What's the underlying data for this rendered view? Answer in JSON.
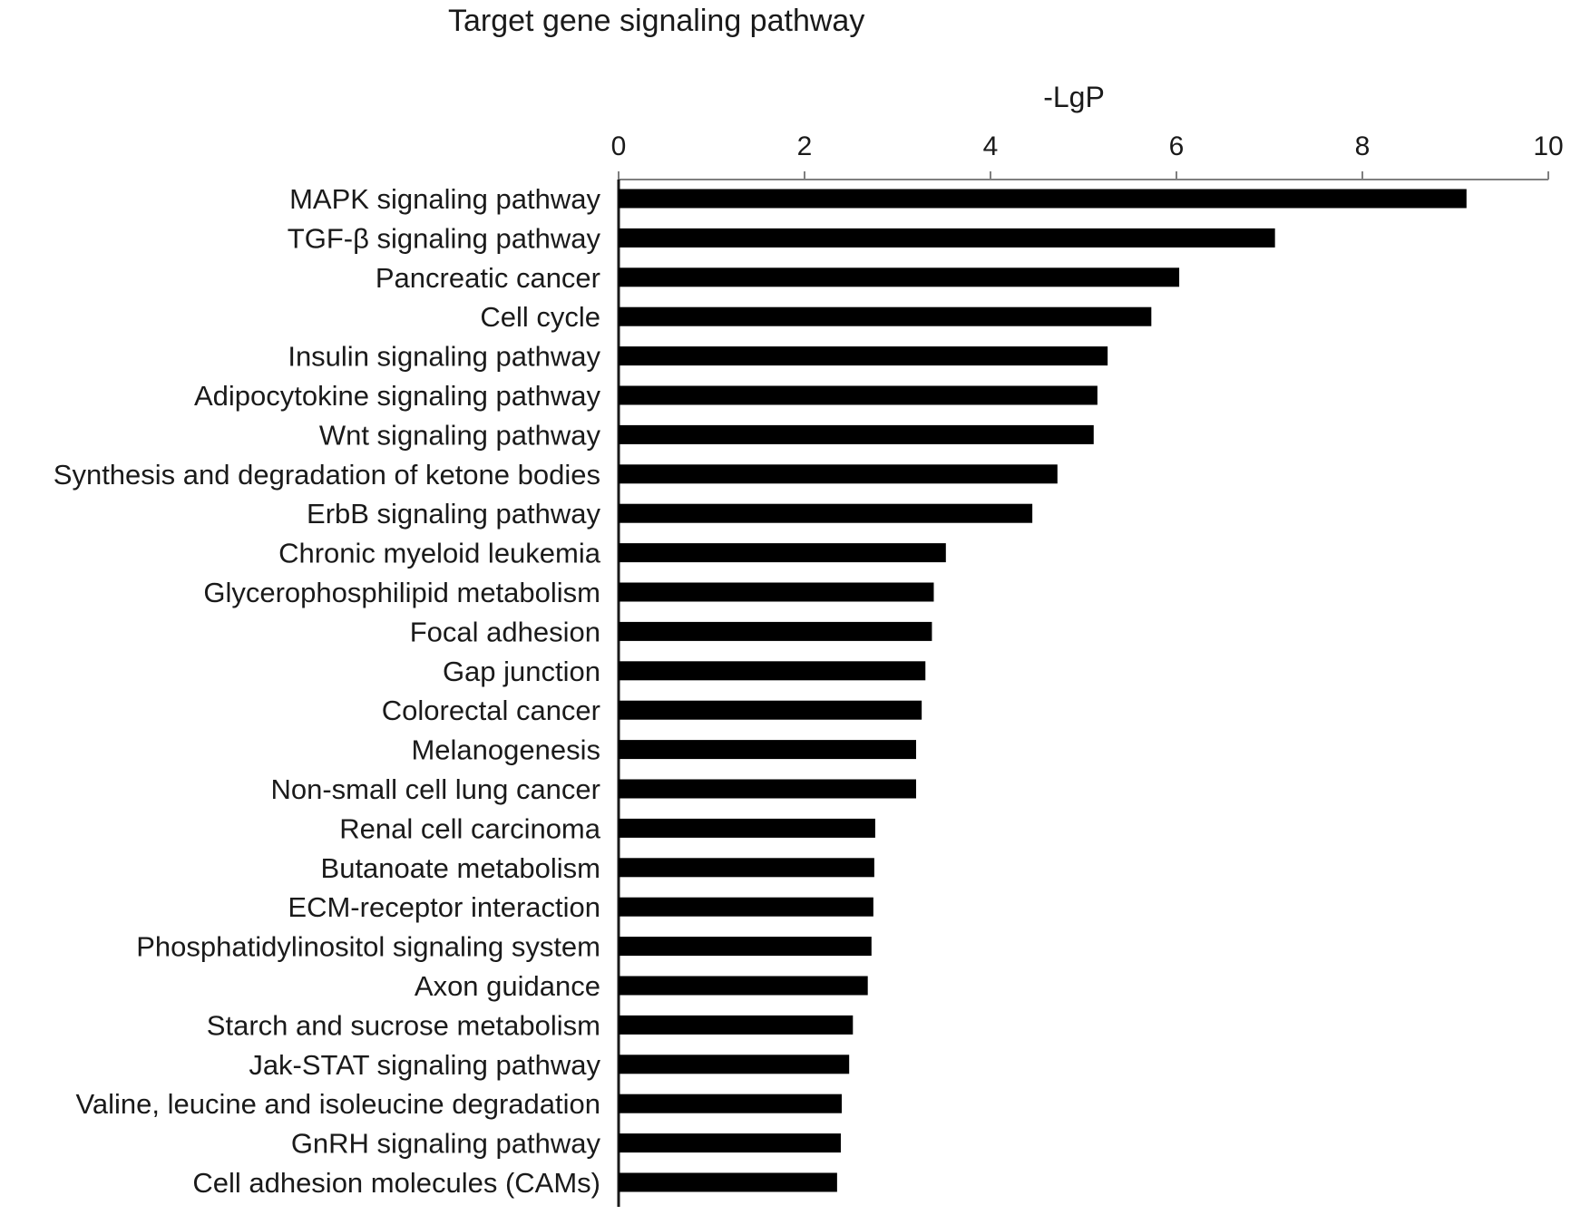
{
  "chart_data": {
    "type": "bar",
    "orientation": "horizontal",
    "title": "Target gene signaling pathway",
    "xlabel": "-LgP",
    "ylabel": "",
    "xlim": [
      0,
      10
    ],
    "x_ticks": [
      "0",
      "2",
      "4",
      "6",
      "8",
      "10"
    ],
    "x_axis_position": "top",
    "grid": false,
    "bar_color": "#000000",
    "categories": [
      "MAPK signaling pathway",
      "TGF-β signaling pathway",
      "Pancreatic cancer",
      "Cell cycle",
      "Insulin signaling pathway",
      "Adipocytokine signaling pathway",
      "Wnt signaling pathway",
      "Synthesis and degradation of ketone bodies",
      "ErbB signaling pathway",
      "Chronic myeloid leukemia",
      "Glycerophosphilipid metabolism",
      "Focal adhesion",
      "Gap junction",
      "Colorectal cancer",
      "Melanogenesis",
      "Non-small cell lung cancer",
      "Renal cell carcinoma",
      "Butanoate metabolism",
      "ECM-receptor interaction",
      "Phosphatidylinositol signaling system",
      "Axon guidance",
      "Starch and sucrose metabolism",
      "Jak-STAT signaling pathway",
      "Valine, leucine and isoleucine degradation",
      "GnRH signaling pathway",
      "Cell adhesion molecules (CAMs)"
    ],
    "values": [
      9.12,
      7.06,
      6.03,
      5.73,
      5.26,
      5.15,
      5.11,
      4.72,
      4.45,
      3.52,
      3.39,
      3.37,
      3.3,
      3.26,
      3.2,
      3.2,
      2.76,
      2.75,
      2.74,
      2.72,
      2.68,
      2.52,
      2.48,
      2.4,
      2.39,
      2.35
    ]
  }
}
